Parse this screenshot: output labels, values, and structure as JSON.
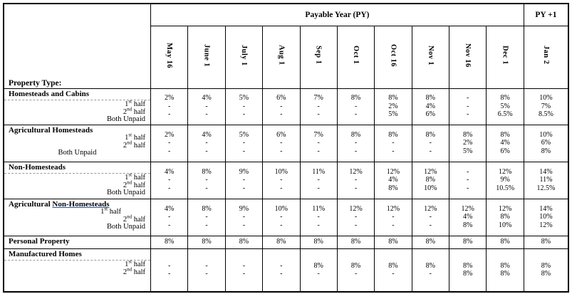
{
  "table": {
    "corner_label": "Property Type:",
    "py_header": "Payable Year (PY)",
    "py1_header": "PY +1",
    "months": [
      "May 16",
      "June 1",
      "July 1",
      "Aug 1",
      "Sep 1",
      "Oct 1",
      "Oct 16",
      "Nov 1",
      "Nov 16",
      "Dec 1"
    ],
    "py1_month": "Jan 2",
    "sections": [
      {
        "name_pre": "Homesteads and Cabins",
        "name_underlined": "",
        "dashed_divider": true,
        "rows": [
          {
            "label_pre": "1",
            "label_sup": "st",
            "label_post": " half",
            "align": "right",
            "values": [
              "2%",
              "4%",
              "5%",
              "6%",
              "7%",
              "8%",
              "8%",
              "8%",
              "-",
              "8%"
            ],
            "py1": "10%"
          },
          {
            "label_pre": "2",
            "label_sup": "nd",
            "label_post": " half",
            "align": "right",
            "values": [
              "-",
              "-",
              "-",
              "-",
              "-",
              "-",
              "2%",
              "4%",
              "-",
              "5%"
            ],
            "py1": "7%"
          },
          {
            "label_pre": "Both Unpaid",
            "label_sup": "",
            "label_post": "",
            "align": "right",
            "values": [
              "-",
              "-",
              "-",
              "-",
              "-",
              "-",
              "5%",
              "6%",
              "-",
              "6.5%"
            ],
            "py1": "8.5%"
          }
        ]
      },
      {
        "name_pre": "Agricultural Homesteads",
        "name_underlined": "",
        "dashed_divider": false,
        "rows": [
          {
            "label_pre": "1",
            "label_sup": "st",
            "label_post": " half",
            "align": "right",
            "values": [
              "2%",
              "4%",
              "5%",
              "6%",
              "7%",
              "8%",
              "8%",
              "8%",
              "8%",
              "8%"
            ],
            "py1": "10%"
          },
          {
            "label_pre": "2",
            "label_sup": "nd",
            "label_post": " half",
            "align": "right",
            "values": [
              "-",
              "-",
              "-",
              "-",
              "-",
              "-",
              "-",
              "-",
              "2%",
              "4%"
            ],
            "py1": "6%"
          },
          {
            "label_pre": "Both Unpaid",
            "label_sup": "",
            "label_post": "",
            "align": "center",
            "values": [
              "-",
              "-",
              "-",
              "-",
              "-",
              "-",
              "-",
              "-",
              "5%",
              "6%"
            ],
            "py1": "8%"
          }
        ]
      },
      {
        "name_pre": "Non-Homesteads",
        "name_underlined": "",
        "dashed_divider": true,
        "rows": [
          {
            "label_pre": "1",
            "label_sup": "st",
            "label_post": " half",
            "align": "right",
            "values": [
              "4%",
              "8%",
              "9%",
              "10%",
              "11%",
              "12%",
              "12%",
              "12%",
              "-",
              "12%"
            ],
            "py1": "14%"
          },
          {
            "label_pre": "2",
            "label_sup": "nd",
            "label_post": " half",
            "align": "right",
            "values": [
              "-",
              "-",
              "-",
              "-",
              "-",
              "-",
              "4%",
              "8%",
              "-",
              "9%"
            ],
            "py1": "11%"
          },
          {
            "label_pre": "Both Unpaid",
            "label_sup": "",
            "label_post": "",
            "align": "right",
            "values": [
              "-",
              "-",
              "-",
              "-",
              "-",
              "-",
              "8%",
              "10%",
              "-",
              "10.5%"
            ],
            "py1": "12.5%"
          }
        ]
      },
      {
        "name_pre": "Agricultural ",
        "name_underlined": "Non-Homesteads",
        "dashed_divider": false,
        "rows": [
          {
            "label_pre": "1",
            "label_sup": "st",
            "label_post": " half",
            "align": "right-indent",
            "values": [
              "4%",
              "8%",
              "9%",
              "10%",
              "11%",
              "12%",
              "12%",
              "12%",
              "12%",
              "12%"
            ],
            "py1": "14%"
          },
          {
            "label_pre": "2",
            "label_sup": "nd",
            "label_post": " half",
            "align": "right",
            "values": [
              "-",
              "-",
              "-",
              "-",
              "-",
              "-",
              "-",
              "-",
              "4%",
              "8%"
            ],
            "py1": "10%"
          },
          {
            "label_pre": "Both Unpaid",
            "label_sup": "",
            "label_post": "",
            "align": "right",
            "values": [
              "-",
              "-",
              "-",
              "-",
              "-",
              "-",
              "-",
              "-",
              "8%",
              "10%"
            ],
            "py1": "12%"
          }
        ]
      },
      {
        "name_pre": "Personal Property",
        "name_underlined": "",
        "dashed_divider": false,
        "rows": [
          {
            "label_pre": "",
            "label_sup": "",
            "label_post": "",
            "align": "right",
            "values": [
              "8%",
              "8%",
              "8%",
              "8%",
              "8%",
              "8%",
              "8%",
              "8%",
              "8%",
              "8%"
            ],
            "py1": "8%"
          }
        ]
      },
      {
        "name_pre": "Manufactured Homes",
        "name_underlined": "",
        "dashed_divider": true,
        "rows": [
          {
            "label_pre": "1",
            "label_sup": "st",
            "label_post": " half",
            "align": "right",
            "values": [
              "-",
              "-",
              "-",
              "-",
              "8%",
              "8%",
              "8%",
              "8%",
              "8%",
              "8%"
            ],
            "py1": "8%"
          },
          {
            "label_pre": "2",
            "label_sup": "nd",
            "label_post": " half",
            "align": "right",
            "values": [
              "-",
              "-",
              "-",
              "-",
              "-",
              "-",
              "-",
              "-",
              "8%",
              "8%"
            ],
            "py1": "8%"
          }
        ]
      }
    ]
  }
}
